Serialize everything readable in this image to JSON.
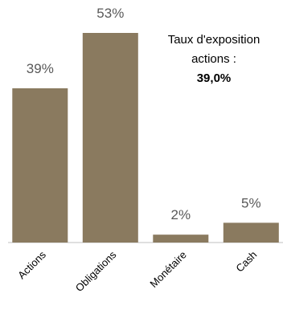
{
  "chart_data": {
    "type": "bar",
    "categories": [
      "Actions",
      "Obligations",
      "Monétaire",
      "Cash"
    ],
    "values": [
      39,
      53,
      2,
      5
    ],
    "value_labels": [
      "39%",
      "53%",
      "2%",
      "5%"
    ],
    "ylim": [
      0,
      53
    ],
    "grid": false,
    "bar_color": "#8a7a5f",
    "annotation": {
      "line1": "Taux d'exposition",
      "line2": "actions :",
      "value": "39,0%"
    }
  }
}
